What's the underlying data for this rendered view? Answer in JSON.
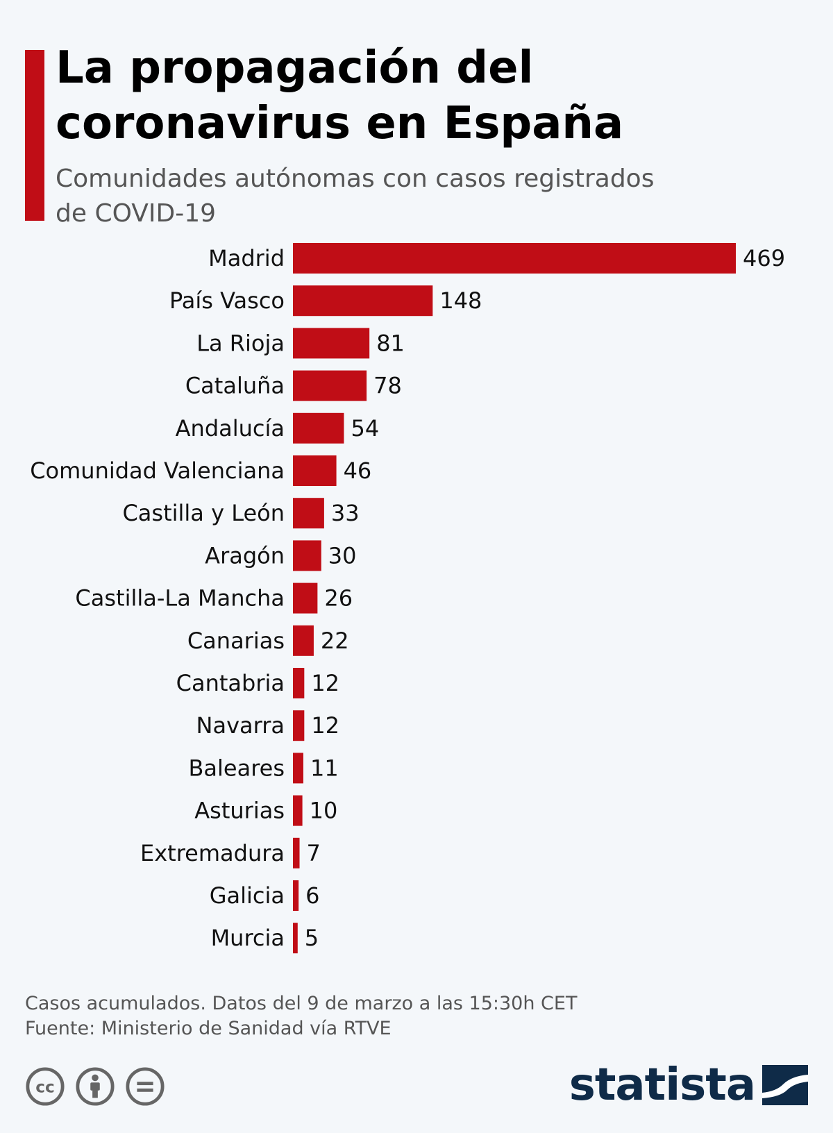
{
  "colors": {
    "accent": "#c00d16",
    "bar": "#c00d16",
    "logo": "#0f2b48",
    "cc": "#666666"
  },
  "header": {
    "title_line1": "La propagación del",
    "title_line2": "coronavirus en España",
    "subtitle_line1": "Comunidades autónomas con casos registrados",
    "subtitle_line2": "de COVID-19"
  },
  "chart_data": {
    "type": "bar",
    "orientation": "horizontal",
    "title": "La propagación del coronavirus en España",
    "subtitle": "Comunidades autónomas con casos registrados de COVID-19",
    "xlabel": "",
    "ylabel": "",
    "categories": [
      "Madrid",
      "País Vasco",
      "La Rioja",
      "Cataluña",
      "Andalucía",
      "Comunidad Valenciana",
      "Castilla y León",
      "Aragón",
      "Castilla-La Mancha",
      "Canarias",
      "Cantabria",
      "Navarra",
      "Baleares",
      "Asturias",
      "Extremadura",
      "Galicia",
      "Murcia"
    ],
    "values": [
      469,
      148,
      81,
      78,
      54,
      46,
      33,
      30,
      26,
      22,
      12,
      12,
      11,
      10,
      7,
      6,
      5
    ],
    "xlim": [
      0,
      469
    ],
    "grid": false
  },
  "footer": {
    "note": "Casos acumulados. Datos del 9 de marzo a las 15:30h CET",
    "source": "Fuente: Ministerio de Sanidad vía RTVE",
    "brand": "statista"
  },
  "icons": [
    "cc-icon",
    "by-icon",
    "nd-icon",
    "statista-logo-icon"
  ]
}
